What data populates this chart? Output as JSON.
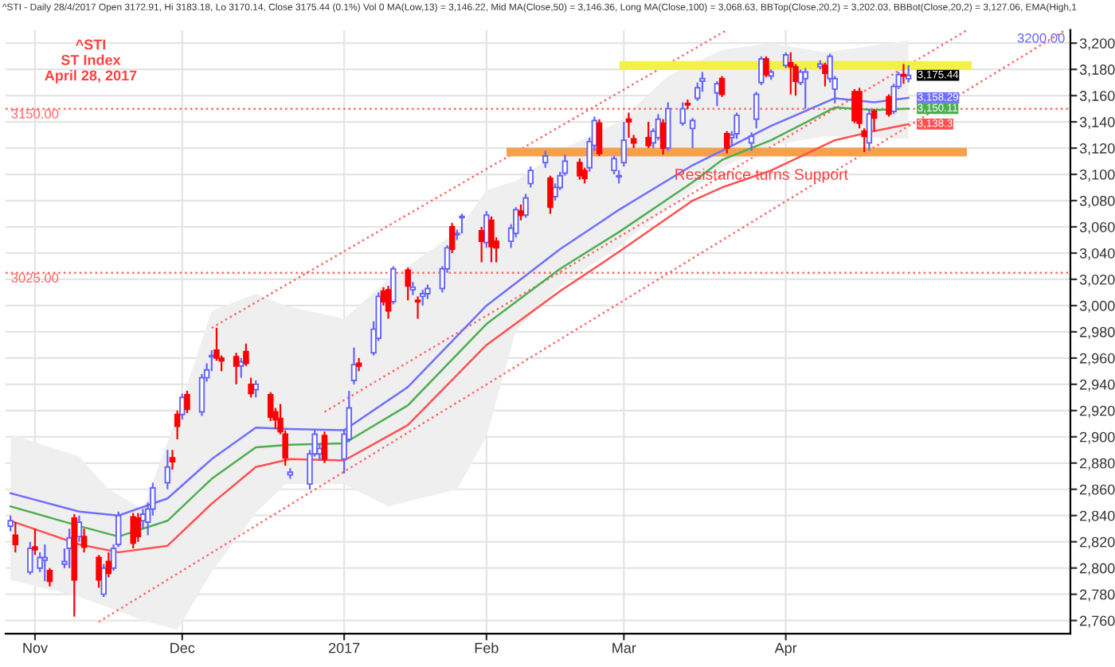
{
  "chart_data": {
    "type": "candlestick",
    "title": "^STI - Daily 28/4/2017 Open 3172.91, Hi 3183.18, Lo 3170.14, Close 3175.44 (0.1%) Vol 0 MA(Low,13) = 3,146.22, Mid MA(Close,50) = 3,146.36, Long MA(Close,100) = 3,068.63, BBTop(Close,20,2) = 3,202.03, BBBot(Close,20,2) = 3,127.06, EMA(High,1",
    "subtitle": "^STI\nST Index\nApril 28, 2017",
    "xlim": [
      "2016-10-26",
      "2017-05-31"
    ],
    "xticks": [
      {
        "value": "2016-11-01",
        "label": "Nov"
      },
      {
        "value": "2016-12-01",
        "label": "Dec"
      },
      {
        "value": "2017-01-03",
        "label": "2017"
      },
      {
        "value": "2017-02-01",
        "label": "Feb"
      },
      {
        "value": "2017-03-01",
        "label": "Mar"
      },
      {
        "value": "2017-04-03",
        "label": "Apr"
      }
    ],
    "ylim": [
      2750,
      3210
    ],
    "yticks": [
      {
        "value": 2760,
        "label": "2,760"
      },
      {
        "value": 2780,
        "label": "2,780"
      },
      {
        "value": 2800,
        "label": "2,800"
      },
      {
        "value": 2820,
        "label": "2,820"
      },
      {
        "value": 2840,
        "label": "2,840"
      },
      {
        "value": 2860,
        "label": "2,860"
      },
      {
        "value": 2880,
        "label": "2,880"
      },
      {
        "value": 2900,
        "label": "2,900"
      },
      {
        "value": 2920,
        "label": "2,920"
      },
      {
        "value": 2940,
        "label": "2,940"
      },
      {
        "value": 2960,
        "label": "2,960"
      },
      {
        "value": 2980,
        "label": "2,980"
      },
      {
        "value": 3000,
        "label": "3,000"
      },
      {
        "value": 3020,
        "label": "3,020"
      },
      {
        "value": 3040,
        "label": "3,040"
      },
      {
        "value": 3060,
        "label": "3,060"
      },
      {
        "value": 3080,
        "label": "3,080"
      },
      {
        "value": 3100,
        "label": "3,100"
      },
      {
        "value": 3120,
        "label": "3,120"
      },
      {
        "value": 3140,
        "label": "3,140"
      },
      {
        "value": 3160,
        "label": "3,160"
      },
      {
        "value": 3180,
        "label": "3,180"
      },
      {
        "value": 3200,
        "label": "3,200"
      }
    ],
    "grid": true,
    "series": [
      {
        "type": "area",
        "color": "#efefef",
        "values": [
          null,
          null,
          null,
          null,
          null,
          null,
          null,
          null,
          null,
          null,
          null,
          null,
          null,
          null,
          null,
          null,
          null,
          null,
          null,
          null
        ],
        "x": [
          "2016-10-27",
          "2016-11-10",
          "2016-11-16",
          "2016-11-23",
          "2016-11-30",
          "2016-12-07",
          "2016-12-16",
          "2016-12-22",
          "2017-01-03",
          "2017-01-12",
          "2017-01-26",
          "2017-02-01",
          "2017-02-07",
          "2017-02-17",
          "2017-02-28",
          "2017-03-10",
          "2017-03-21",
          "2017-03-31",
          "2017-04-11",
          "2017-04-28"
        ],
        "upper": [
          2902,
          2885,
          2860,
          2845,
          2917,
          2996,
          3009,
          3000,
          2990,
          3020,
          3056,
          3088,
          3095,
          3120,
          3140,
          3175,
          3195,
          3200,
          3193,
          3202
        ],
        "lower": [
          2791,
          2778,
          2770,
          2760,
          2753,
          2797,
          2842,
          2864,
          2864,
          2847,
          2860,
          2900,
          2981,
          3018,
          3045,
          3075,
          3105,
          3122,
          3129,
          3127
        ]
      },
      {
        "type": "line",
        "color": "#ff6666",
        "line_style": "dotted",
        "x": [
          "2016-12-07",
          "2017-03-22"
        ],
        "values": [
          2983,
          3210
        ]
      },
      {
        "type": "line",
        "color": "#ff6666",
        "line_style": "dotted",
        "x": [
          "2016-12-30",
          "2017-05-10"
        ],
        "values": [
          2919,
          3210
        ]
      },
      {
        "type": "line",
        "color": "#ff6666",
        "line_style": "dotted",
        "x": [
          "2016-11-14",
          "2017-05-30"
        ],
        "values": [
          2759,
          3210
        ]
      },
      {
        "type": "line",
        "color": "#f4f04a",
        "line_style": "solid",
        "x": [
          "2017-03-01",
          "2017-05-10"
        ],
        "values": [
          3183,
          3183
        ]
      },
      {
        "type": "line",
        "color": "#f5a04a",
        "line_style": "solid",
        "x": [
          "2017-02-06",
          "2017-05-09"
        ],
        "values": [
          3117,
          3117
        ]
      },
      {
        "type": "line",
        "color": "#6f6fff",
        "line_style": "solid",
        "x": [
          "2016-10-27",
          "2016-11-10",
          "2016-11-18",
          "2016-11-28",
          "2016-12-07",
          "2016-12-16",
          "2016-12-23",
          "2017-01-03",
          "2017-01-16",
          "2017-02-01",
          "2017-02-16",
          "2017-02-28",
          "2017-03-15",
          "2017-03-21",
          "2017-03-31",
          "2017-04-13",
          "2017-04-21",
          "2017-04-28"
        ],
        "values": [
          2857,
          2843,
          2840,
          2853,
          2883,
          2907,
          2906,
          2905,
          2938,
          3000,
          3043,
          3073,
          3107,
          3118,
          3137,
          3158,
          3155,
          3158.29
        ],
        "value_labels": [
          null,
          null,
          null,
          null,
          null,
          null,
          null,
          null,
          null,
          null,
          null,
          null,
          null,
          null,
          null,
          null,
          null,
          "3,158.29"
        ]
      },
      {
        "type": "line",
        "color": "#4caf50",
        "line_style": "solid",
        "x": [
          "2016-10-27",
          "2016-11-10",
          "2016-11-18",
          "2016-11-28",
          "2016-12-07",
          "2016-12-16",
          "2016-12-23",
          "2017-01-03",
          "2017-01-16",
          "2017-02-01",
          "2017-02-16",
          "2017-02-28",
          "2017-03-15",
          "2017-03-21",
          "2017-03-31",
          "2017-04-13",
          "2017-04-21",
          "2017-04-28"
        ],
        "values": [
          2847,
          2832,
          2824,
          2836,
          2868,
          2892,
          2894,
          2895,
          2924,
          2986,
          3028,
          3056,
          3094,
          3111,
          3126,
          3151,
          3149,
          3150.11
        ],
        "value_labels": [
          null,
          null,
          null,
          null,
          null,
          null,
          null,
          null,
          null,
          null,
          null,
          null,
          null,
          null,
          null,
          null,
          null,
          "3,150.11"
        ]
      },
      {
        "type": "line",
        "color": "#ff5050",
        "line_style": "solid",
        "x": [
          "2016-10-27",
          "2016-11-10",
          "2016-11-18",
          "2016-11-28",
          "2016-12-07",
          "2016-12-16",
          "2016-12-23",
          "2017-01-03",
          "2017-01-16",
          "2017-02-01",
          "2017-02-16",
          "2017-02-28",
          "2017-03-15",
          "2017-03-21",
          "2017-03-31",
          "2017-04-13",
          "2017-04-21",
          "2017-04-28"
        ],
        "values": [
          2836,
          2818,
          2812,
          2817,
          2849,
          2877,
          2883,
          2882,
          2909,
          2970,
          3011,
          3041,
          3080,
          3090,
          3103,
          3126,
          3133,
          3138.3
        ],
        "value_labels": [
          null,
          null,
          null,
          null,
          null,
          null,
          null,
          null,
          null,
          null,
          null,
          null,
          null,
          null,
          null,
          null,
          null,
          "3,138.3"
        ]
      },
      {
        "color": "#6464ff",
        "x": [
          "2016-10-27",
          "2016-10-31",
          "2016-11-02",
          "2016-11-03",
          "2016-11-07",
          "2016-11-08",
          "2016-11-10",
          "2016-11-15",
          "2016-11-17",
          "2016-11-18",
          "2016-11-23",
          "2016-11-24",
          "2016-11-25",
          "2016-11-28",
          "2016-12-01",
          "2016-12-05",
          "2016-12-06",
          "2016-12-07",
          "2016-12-13",
          "2016-12-16",
          "2016-12-23",
          "2016-12-27",
          "2016-12-28",
          "2016-12-29",
          "2017-01-03",
          "2017-01-04",
          "2017-01-05",
          "2017-01-09",
          "2017-01-10",
          "2017-01-13",
          "2017-01-17",
          "2017-01-19",
          "2017-01-20",
          "2017-01-23",
          "2017-01-24",
          "2017-01-26",
          "2017-01-27",
          "2017-02-01",
          "2017-02-06",
          "2017-02-07",
          "2017-02-09",
          "2017-02-10",
          "2017-02-13",
          "2017-02-15",
          "2017-02-16",
          "2017-02-17",
          "2017-02-22",
          "2017-02-23",
          "2017-02-27",
          "2017-02-28",
          "2017-03-01",
          "2017-03-07",
          "2017-03-08",
          "2017-03-10",
          "2017-03-13",
          "2017-03-15",
          "2017-03-16",
          "2017-03-17",
          "2017-03-20",
          "2017-03-23",
          "2017-03-24",
          "2017-03-27",
          "2017-03-28",
          "2017-03-29",
          "2017-03-31",
          "2017-04-03",
          "2017-04-06",
          "2017-04-07",
          "2017-04-10",
          "2017-04-12",
          "2017-04-13",
          "2017-04-20",
          "2017-04-25",
          "2017-04-26",
          "2017-04-28"
        ],
        "ohlc": [
          [
            2832,
            2840,
            2828,
            2836
          ],
          [
            2797,
            2820,
            2795,
            2815
          ],
          [
            2800,
            2812,
            2797,
            2808
          ],
          [
            2806,
            2818,
            2790,
            2808
          ],
          [
            2803,
            2815,
            2800,
            2805
          ],
          [
            2815,
            2830,
            2800,
            2823
          ],
          [
            2824,
            2840,
            2820,
            2835
          ],
          [
            2780,
            2803,
            2778,
            2800
          ],
          [
            2800,
            2818,
            2798,
            2815
          ],
          [
            2818,
            2843,
            2816,
            2840
          ],
          [
            2836,
            2845,
            2830,
            2841
          ],
          [
            2835,
            2850,
            2825,
            2845
          ],
          [
            2845,
            2865,
            2840,
            2861
          ],
          [
            2865,
            2890,
            2860,
            2877
          ],
          [
            2917,
            2933,
            2913,
            2930
          ],
          [
            2919,
            2948,
            2916,
            2945
          ],
          [
            2945,
            2956,
            2942,
            2951
          ],
          [
            2961,
            2966,
            2950,
            2962
          ],
          [
            2954,
            2960,
            2945,
            2957
          ],
          [
            2936,
            2943,
            2930,
            2940
          ],
          [
            2871,
            2876,
            2868,
            2873
          ],
          [
            2864,
            2890,
            2860,
            2887
          ],
          [
            2887,
            2905,
            2885,
            2902
          ],
          [
            2887,
            2895,
            2882,
            2891
          ],
          [
            2883,
            2906,
            2872,
            2902
          ],
          [
            2898,
            2935,
            2896,
            2922
          ],
          [
            2943,
            2968,
            2940,
            2955
          ],
          [
            2964,
            2988,
            2962,
            2982
          ],
          [
            2975,
            3010,
            2973,
            3007
          ],
          [
            3003,
            3030,
            3001,
            3028
          ],
          [
            3012,
            3018,
            3008,
            3014
          ],
          [
            3007,
            3012,
            3000,
            3009
          ],
          [
            3009,
            3016,
            3005,
            3013
          ],
          [
            3013,
            3030,
            3010,
            3028
          ],
          [
            3028,
            3046,
            3025,
            3044
          ],
          [
            3054,
            3058,
            3050,
            3055
          ],
          [
            3067,
            3070,
            3055,
            3068
          ],
          [
            3048,
            3072,
            3044,
            3069
          ],
          [
            3049,
            3062,
            3044,
            3059
          ],
          [
            3055,
            3075,
            3052,
            3073
          ],
          [
            3069,
            3085,
            3067,
            3082
          ],
          [
            3093,
            3106,
            3090,
            3103
          ],
          [
            3109,
            3118,
            3105,
            3114
          ],
          [
            3083,
            3093,
            3080,
            3090
          ],
          [
            3090,
            3102,
            3088,
            3099
          ],
          [
            3101,
            3115,
            3099,
            3110
          ],
          [
            3105,
            3128,
            3102,
            3125
          ],
          [
            3122,
            3144,
            3118,
            3141
          ],
          [
            3103,
            3114,
            3100,
            3112
          ],
          [
            3098,
            3103,
            3093,
            3099
          ],
          [
            3109,
            3140,
            3106,
            3126
          ],
          [
            3124,
            3135,
            3120,
            3133
          ],
          [
            3128,
            3146,
            3126,
            3142
          ],
          [
            3120,
            3155,
            3118,
            3150
          ],
          [
            3139,
            3155,
            3137,
            3150
          ],
          [
            3135,
            3143,
            3120,
            3141
          ],
          [
            3158,
            3170,
            3156,
            3166
          ],
          [
            3171,
            3178,
            3163,
            3173
          ],
          [
            3162,
            3171,
            3152,
            3169
          ],
          [
            3128,
            3133,
            3122,
            3130
          ],
          [
            3131,
            3147,
            3127,
            3145
          ],
          [
            3124,
            3132,
            3118,
            3129
          ],
          [
            3142,
            3163,
            3135,
            3161
          ],
          [
            3170,
            3190,
            3168,
            3188
          ],
          [
            3175,
            3180,
            3172,
            3178
          ],
          [
            3183,
            3193,
            3181,
            3191
          ],
          [
            3170,
            3180,
            3168,
            3178
          ],
          [
            3173,
            3181,
            3150,
            3178
          ],
          [
            3182,
            3187,
            3180,
            3184
          ],
          [
            3173,
            3192,
            3170,
            3190
          ],
          [
            3165,
            3175,
            3154,
            3173
          ],
          [
            3124,
            3150,
            3118,
            3146
          ],
          [
            3148,
            3169,
            3146,
            3167
          ],
          [
            3167,
            3178,
            3165,
            3176
          ],
          [
            3172.91,
            3183.18,
            3170.14,
            3175.44
          ]
        ],
        "value_labels": [
          null,
          null,
          null,
          null,
          null,
          null,
          null,
          null,
          null,
          null,
          null,
          null,
          null,
          null,
          null,
          null,
          null,
          null,
          null,
          null,
          null,
          null,
          null,
          null,
          null,
          null,
          null,
          null,
          null,
          null,
          null,
          null,
          null,
          null,
          null,
          null,
          null,
          null,
          null,
          null,
          null,
          null,
          null,
          null,
          null,
          null,
          null,
          null,
          null,
          null,
          null,
          null,
          null,
          null,
          null,
          null,
          null,
          null,
          null,
          null,
          null,
          null,
          null,
          null,
          null,
          null,
          null,
          null,
          null,
          null,
          null,
          null,
          null,
          null,
          "3,175.44"
        ]
      },
      {
        "color": "#ff0000",
        "x": [
          "2016-10-28",
          "2016-11-01",
          "2016-11-04",
          "2016-11-09",
          "2016-11-11",
          "2016-11-14",
          "2016-11-16",
          "2016-11-21",
          "2016-11-22",
          "2016-11-29",
          "2016-11-30",
          "2016-12-02",
          "2016-12-08",
          "2016-12-09",
          "2016-12-12",
          "2016-12-14",
          "2016-12-15",
          "2016-12-19",
          "2016-12-20",
          "2016-12-21",
          "2016-12-22",
          "2016-12-30",
          "2017-01-06",
          "2017-01-11",
          "2017-01-12",
          "2017-01-16",
          "2017-01-18",
          "2017-01-25",
          "2017-01-31",
          "2017-02-02",
          "2017-02-03",
          "2017-02-08",
          "2017-02-14",
          "2017-02-20",
          "2017-02-21",
          "2017-02-24",
          "2017-03-02",
          "2017-03-03",
          "2017-03-06",
          "2017-03-09",
          "2017-03-14",
          "2017-03-21",
          "2017-03-22",
          "2017-03-30",
          "2017-04-04",
          "2017-04-05",
          "2017-04-11",
          "2017-04-17",
          "2017-04-18",
          "2017-04-19",
          "2017-04-21",
          "2017-04-24",
          "2017-04-27"
        ],
        "ohlc": [
          [
            2825,
            2835,
            2812,
            2818
          ],
          [
            2816,
            2830,
            2810,
            2814
          ],
          [
            2798,
            2800,
            2786,
            2790
          ],
          [
            2838,
            2841,
            2763,
            2791
          ],
          [
            2824,
            2830,
            2812,
            2816
          ],
          [
            2808,
            2810,
            2785,
            2791
          ],
          [
            2805,
            2812,
            2793,
            2796
          ],
          [
            2839,
            2842,
            2815,
            2819
          ],
          [
            2838,
            2842,
            2820,
            2824
          ],
          [
            2884,
            2890,
            2875,
            2881
          ],
          [
            2917,
            2920,
            2898,
            2908
          ],
          [
            2932,
            2935,
            2918,
            2921
          ],
          [
            2966,
            2983,
            2958,
            2960
          ],
          [
            2960,
            2962,
            2950,
            2958
          ],
          [
            2961,
            2964,
            2940,
            2954
          ],
          [
            2965,
            2971,
            2954,
            2956
          ],
          [
            2940,
            2945,
            2930,
            2933
          ],
          [
            2932,
            2934,
            2912,
            2915
          ],
          [
            2919,
            2922,
            2906,
            2913
          ],
          [
            2914,
            2925,
            2902,
            2904
          ],
          [
            2902,
            2905,
            2878,
            2884
          ],
          [
            2901,
            2904,
            2880,
            2883
          ],
          [
            2956,
            2960,
            2950,
            2954
          ],
          [
            3011,
            3014,
            3000,
            3003
          ],
          [
            3012,
            3015,
            2990,
            2996
          ],
          [
            3027,
            3029,
            3004,
            3015
          ],
          [
            3004,
            3007,
            2990,
            3003
          ],
          [
            3060,
            3063,
            3040,
            3043
          ],
          [
            3057,
            3060,
            3033,
            3049
          ],
          [
            3065,
            3068,
            3033,
            3045
          ],
          [
            3049,
            3052,
            3033,
            3044
          ],
          [
            3072,
            3077,
            3065,
            3069
          ],
          [
            3097,
            3099,
            3070,
            3075
          ],
          [
            3109,
            3112,
            3096,
            3099
          ],
          [
            3103,
            3105,
            3093,
            3097
          ],
          [
            3139,
            3142,
            3114,
            3116
          ],
          [
            3142,
            3147,
            3128,
            3140
          ],
          [
            3127,
            3130,
            3120,
            3124
          ],
          [
            3128,
            3140,
            3120,
            3122
          ],
          [
            3139,
            3142,
            3115,
            3120
          ],
          [
            3154,
            3157,
            3150,
            3153
          ],
          [
            3173,
            3175,
            3159,
            3161
          ],
          [
            3131,
            3133,
            3116,
            3120
          ],
          [
            3188,
            3190,
            3174,
            3176
          ],
          [
            3185,
            3193,
            3161,
            3182
          ],
          [
            3182,
            3184,
            3160,
            3171
          ],
          [
            3183,
            3185,
            3167,
            3177
          ],
          [
            3163,
            3165,
            3139,
            3141
          ],
          [
            3163,
            3166,
            3135,
            3139
          ],
          [
            3133,
            3135,
            3117,
            3129
          ],
          [
            3148,
            3150,
            3133,
            3143
          ],
          [
            3159,
            3161,
            3144,
            3146
          ],
          [
            3176,
            3184,
            3169,
            3175
          ]
        ]
      }
    ],
    "ref_lines": [
      {
        "axis": "y",
        "value": 3150,
        "label": "3150.00",
        "color": "#ff6666",
        "line_style": "dotted"
      },
      {
        "axis": "y",
        "value": 3025,
        "label": "3025.00",
        "color": "#ff6666",
        "line_style": "dotted"
      }
    ],
    "annotations": [
      {
        "text": "Resistance turns Support",
        "x": "2017-03-29",
        "y": 3099
      },
      "3200.00"
    ]
  }
}
